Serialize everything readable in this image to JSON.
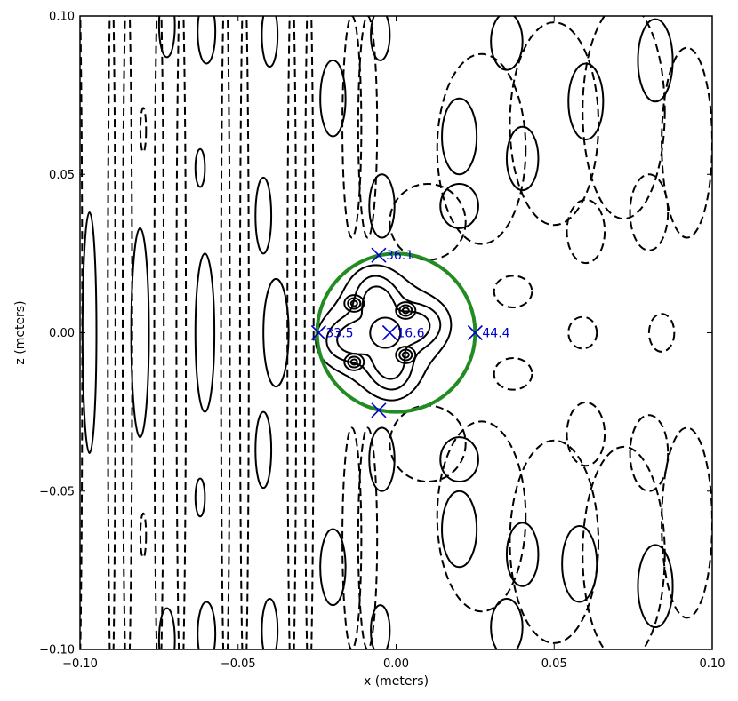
{
  "chart_data": {
    "type": "contour",
    "title": "",
    "xlabel": "x (meters)",
    "ylabel": "z (meters)",
    "xlim": [
      -0.1,
      0.1
    ],
    "ylim": [
      -0.1,
      0.1
    ],
    "xticks": [
      -0.1,
      -0.05,
      0.0,
      0.05,
      0.1
    ],
    "xtick_labels": [
      "−0.10",
      "−0.05",
      "0.00",
      "0.05",
      "0.10"
    ],
    "yticks": [
      -0.1,
      -0.05,
      0.0,
      0.05,
      0.1
    ],
    "ytick_labels": [
      "−0.10",
      "−0.05",
      "0.00",
      "0.05",
      "0.10"
    ],
    "grid": false,
    "contour_styles": {
      "positive": "solid",
      "negative": "dashed"
    },
    "line_color": "#000000",
    "circle": {
      "center": [
        0.0,
        0.0
      ],
      "radius": 0.025,
      "color": "#228b22"
    },
    "markers": [
      {
        "x": -0.0055,
        "z": 0.0245,
        "label": "36.1"
      },
      {
        "x": -0.0245,
        "z": 0.0,
        "label": "33.5"
      },
      {
        "x": -0.002,
        "z": 0.0,
        "label": "16.6"
      },
      {
        "x": 0.025,
        "z": 0.0,
        "label": "44.4"
      },
      {
        "x": -0.0055,
        "z": -0.0245,
        "label": ""
      }
    ],
    "marker_color": "#0000cc"
  }
}
